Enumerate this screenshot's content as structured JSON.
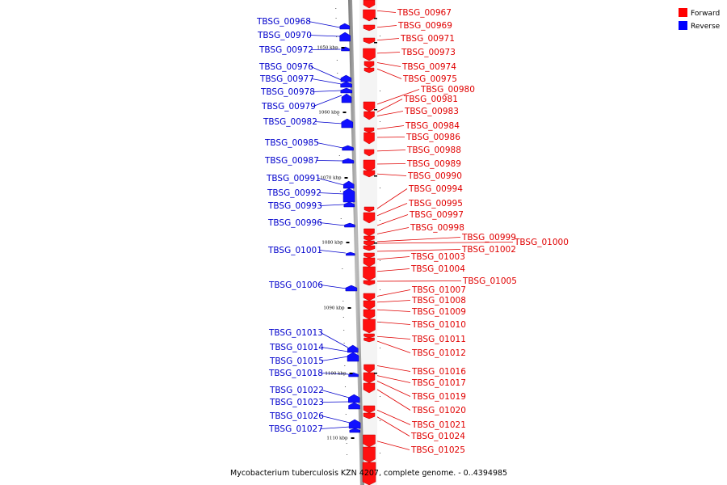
{
  "title": "Mycobacterium tuberculosis KZN 4207, complete genome. - 0..4394985",
  "legend": [
    {
      "label": "Forward",
      "color": "#ff0000"
    },
    {
      "label": "Reverse",
      "color": "#0000ff"
    }
  ],
  "scale_ticks": [
    "1050 kbp",
    "1060 kbp",
    "1070 kbp",
    "1080 kbp",
    "1090 kbp",
    "1100 kbp",
    "1110 kbp"
  ],
  "forward_genes": [
    "TBSG_00967",
    "TBSG_00969",
    "TBSG_00971",
    "TBSG_00973",
    "TBSG_00974",
    "TBSG_00975",
    "TBSG_00980",
    "TBSG_00981",
    "TBSG_00983",
    "TBSG_00984",
    "TBSG_00986",
    "TBSG_00988",
    "TBSG_00989",
    "TBSG_00990",
    "TBSG_00994",
    "TBSG_00995",
    "TBSG_00997",
    "TBSG_00998",
    "TBSG_00999",
    "TBSG_01000",
    "TBSG_01002",
    "TBSG_01003",
    "TBSG_01004",
    "TBSG_01005",
    "TBSG_01007",
    "TBSG_01008",
    "TBSG_01009",
    "TBSG_01010",
    "TBSG_01011",
    "TBSG_01012",
    "TBSG_01016",
    "TBSG_01017",
    "TBSG_01019",
    "TBSG_01020",
    "TBSG_01021",
    "TBSG_01024",
    "TBSG_01025"
  ],
  "reverse_genes": [
    "TBSG_00968",
    "TBSG_00970",
    "TBSG_00972",
    "TBSG_00976",
    "TBSG_00977",
    "TBSG_00978",
    "TBSG_00979",
    "TBSG_00982",
    "TBSG_00985",
    "TBSG_00987",
    "TBSG_00991",
    "TBSG_00992",
    "TBSG_00993",
    "TBSG_00996",
    "TBSG_01001",
    "TBSG_01006",
    "TBSG_01013",
    "TBSG_01014",
    "TBSG_01015",
    "TBSG_01018",
    "TBSG_01022",
    "TBSG_01023",
    "TBSG_01026",
    "TBSG_01027"
  ]
}
